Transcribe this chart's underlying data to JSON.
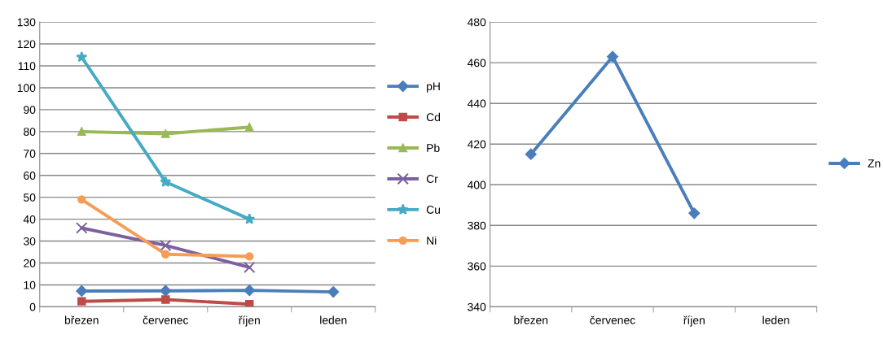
{
  "chart_data": [
    {
      "type": "line",
      "categories": [
        "březen",
        "červenec",
        "říjen",
        "leden"
      ],
      "ylim": [
        0,
        130
      ],
      "yticks": [
        0,
        10,
        20,
        30,
        40,
        50,
        60,
        70,
        80,
        90,
        100,
        110,
        120,
        130
      ],
      "grid": "y",
      "legend": "right",
      "series": [
        {
          "name": "pH",
          "color": "#4a7ebb",
          "marker": "diamond",
          "values": [
            7.2,
            7.3,
            7.5,
            6.8
          ]
        },
        {
          "name": "Cd",
          "color": "#be4b48",
          "marker": "square",
          "values": [
            2.5,
            3.3,
            1.2,
            null
          ]
        },
        {
          "name": "Pb",
          "color": "#98b954",
          "marker": "triangle",
          "values": [
            80,
            79,
            82,
            null
          ]
        },
        {
          "name": "Cr",
          "color": "#7d60a0",
          "marker": "cross",
          "values": [
            36,
            28,
            18,
            null
          ]
        },
        {
          "name": "Cu",
          "color": "#46aac5",
          "marker": "star",
          "values": [
            114,
            57,
            40,
            null
          ]
        },
        {
          "name": "Ni",
          "color": "#f59d56",
          "marker": "circle",
          "values": [
            49,
            24,
            23,
            null
          ]
        }
      ]
    },
    {
      "type": "line",
      "categories": [
        "březen",
        "červenec",
        "říjen",
        "leden"
      ],
      "ylim": [
        340,
        480
      ],
      "yticks": [
        340,
        360,
        380,
        400,
        420,
        440,
        460,
        480
      ],
      "grid": "y",
      "legend": "right",
      "series": [
        {
          "name": "Zn",
          "color": "#4a7ebb",
          "marker": "diamond",
          "values": [
            415,
            463,
            386,
            null
          ]
        }
      ]
    }
  ]
}
